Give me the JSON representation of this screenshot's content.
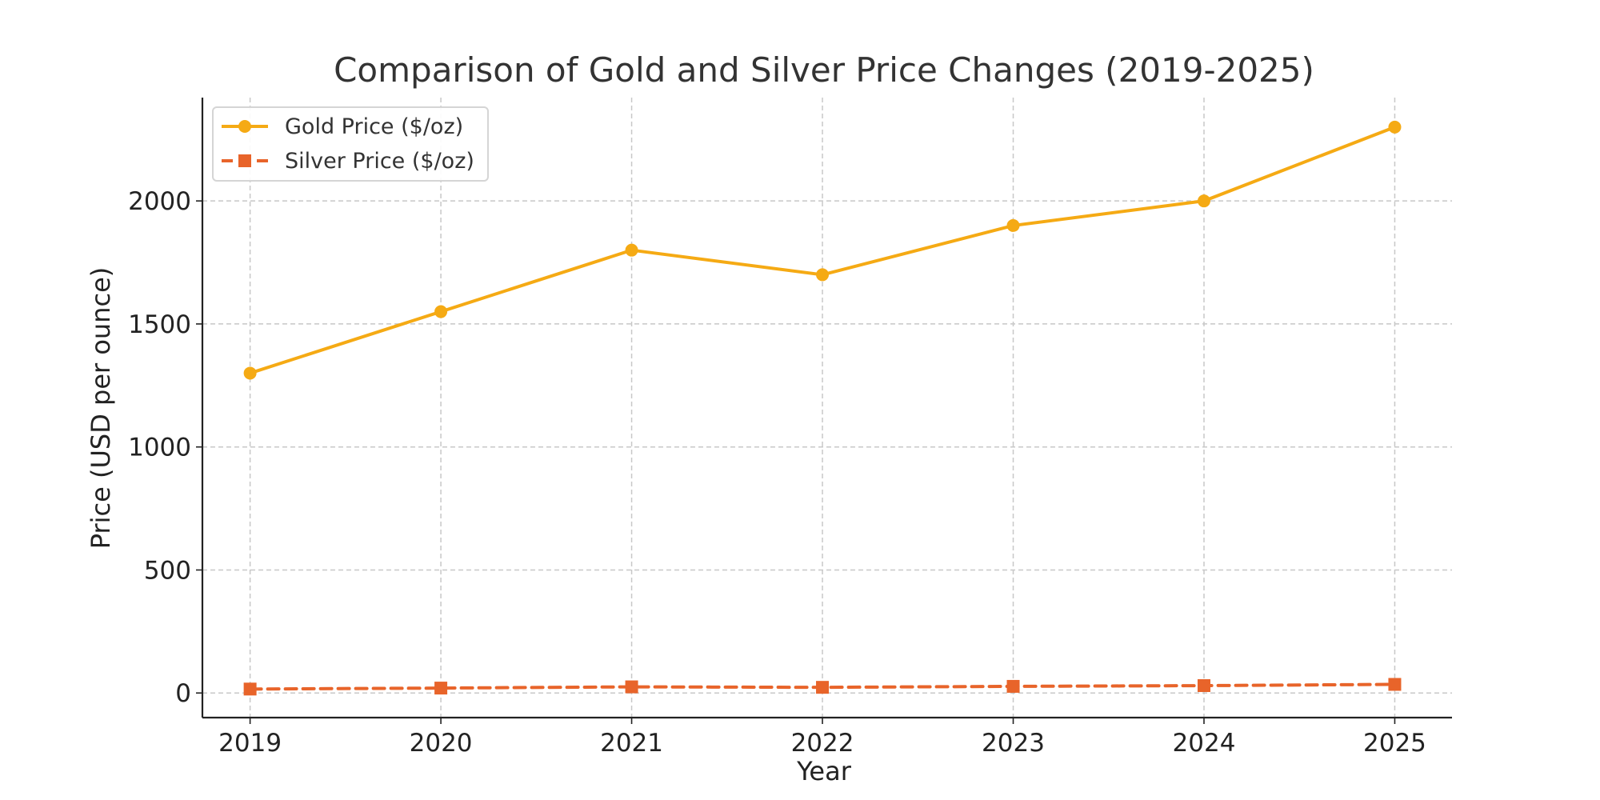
{
  "chart_data": {
    "type": "line",
    "title": "Comparison of Gold and Silver Price Changes (2019-2025)",
    "xlabel": "Year",
    "ylabel": "Price (USD per ounce)",
    "x": [
      "2019",
      "2020",
      "2021",
      "2022",
      "2023",
      "2024",
      "2025"
    ],
    "xlim": [
      2018.75,
      2025.3
    ],
    "ylim": [
      -100,
      2420
    ],
    "yticks": [
      0,
      500,
      1000,
      1500,
      2000
    ],
    "grid": true,
    "legend_position": "top-left",
    "series": [
      {
        "name": "Gold Price ($/oz)",
        "values": [
          1300,
          1550,
          1800,
          1700,
          1900,
          2000,
          2300
        ],
        "color": "#f5aa14",
        "marker": "circle",
        "line_style": "solid"
      },
      {
        "name": "Silver Price ($/oz)",
        "values": [
          16,
          20,
          25,
          23,
          27,
          30,
          35
        ],
        "color": "#e8642a",
        "marker": "square",
        "line_style": "dashed"
      }
    ]
  }
}
